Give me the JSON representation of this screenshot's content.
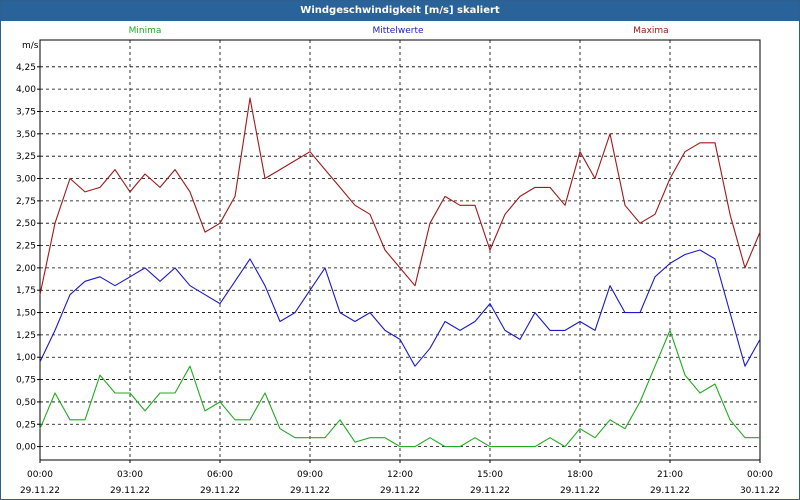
{
  "window": {
    "title": "Windgeschwindigkeit [m/s] skaliert"
  },
  "chart_data": {
    "type": "line",
    "title": "Windgeschwindigkeit [m/s] skaliert",
    "ylabel": "m/s",
    "xlabel": "",
    "ylim": [
      -0.15,
      4.55
    ],
    "grid": true,
    "y_ticks": [
      "0,00",
      "0,25",
      "0,50",
      "0,75",
      "1,00",
      "1,25",
      "1,50",
      "1,75",
      "2,00",
      "2,25",
      "2,50",
      "2,75",
      "3,00",
      "3,25",
      "3,50",
      "3,75",
      "4,00",
      "4,25"
    ],
    "x_ticks": [
      {
        "time": "00:00",
        "date": "29.11.22"
      },
      {
        "time": "03:00",
        "date": "29.11.22"
      },
      {
        "time": "06:00",
        "date": "29.11.22"
      },
      {
        "time": "09:00",
        "date": "29.11.22"
      },
      {
        "time": "12:00",
        "date": "29.11.22"
      },
      {
        "time": "15:00",
        "date": "29.11.22"
      },
      {
        "time": "18:00",
        "date": "29.11.22"
      },
      {
        "time": "21:00",
        "date": "29.11.22"
      },
      {
        "time": "00:00",
        "date": "30.11.22"
      }
    ],
    "x_hours": [
      0,
      0.5,
      1,
      1.5,
      2,
      2.5,
      3,
      3.5,
      4,
      4.5,
      5,
      5.5,
      6,
      6.5,
      7,
      7.5,
      8,
      8.5,
      9,
      9.5,
      10,
      10.5,
      11,
      11.5,
      12,
      12.5,
      13,
      13.5,
      14,
      14.5,
      15,
      15.5,
      16,
      16.5,
      17,
      17.5,
      18,
      18.5,
      19,
      19.5,
      20,
      20.5,
      21,
      21.5,
      22,
      22.5,
      23,
      23.5,
      24
    ],
    "series": [
      {
        "name": "Minima",
        "color": "#22aa22",
        "values": [
          0.2,
          0.6,
          0.3,
          0.3,
          0.8,
          0.6,
          0.6,
          0.4,
          0.6,
          0.6,
          0.9,
          0.4,
          0.5,
          0.3,
          0.3,
          0.6,
          0.2,
          0.1,
          0.1,
          0.1,
          0.3,
          0.05,
          0.1,
          0.1,
          0.0,
          0.0,
          0.1,
          0.0,
          0.0,
          0.1,
          0.0,
          0.0,
          0.0,
          0.0,
          0.1,
          0.0,
          0.2,
          0.1,
          0.3,
          0.2,
          0.5,
          0.9,
          1.3,
          0.8,
          0.6,
          0.7,
          0.3,
          0.1,
          0.1
        ]
      },
      {
        "name": "Mittelwerte",
        "color": "#1a1acc",
        "values": [
          0.95,
          1.3,
          1.7,
          1.85,
          1.9,
          1.8,
          1.9,
          2.0,
          1.85,
          2.0,
          1.8,
          1.7,
          1.6,
          1.85,
          2.1,
          1.8,
          1.4,
          1.5,
          1.75,
          2.0,
          1.5,
          1.4,
          1.5,
          1.3,
          1.2,
          0.9,
          1.1,
          1.4,
          1.3,
          1.4,
          1.6,
          1.3,
          1.2,
          1.5,
          1.3,
          1.3,
          1.4,
          1.3,
          1.8,
          1.5,
          1.5,
          1.9,
          2.05,
          2.15,
          2.2,
          2.1,
          1.5,
          0.9,
          1.2
        ]
      },
      {
        "name": "Maxima",
        "color": "#a01818",
        "values": [
          1.7,
          2.5,
          3.0,
          2.85,
          2.9,
          3.1,
          2.85,
          3.05,
          2.9,
          3.1,
          2.85,
          2.4,
          2.5,
          2.8,
          3.9,
          3.0,
          3.1,
          3.2,
          3.3,
          3.1,
          2.9,
          2.7,
          2.6,
          2.2,
          2.0,
          1.8,
          2.5,
          2.8,
          2.7,
          2.7,
          2.2,
          2.6,
          2.8,
          2.9,
          2.9,
          2.7,
          3.3,
          3.0,
          3.5,
          2.7,
          2.5,
          2.6,
          3.0,
          3.3,
          3.4,
          3.4,
          2.6,
          2.0,
          2.4
        ]
      }
    ]
  }
}
